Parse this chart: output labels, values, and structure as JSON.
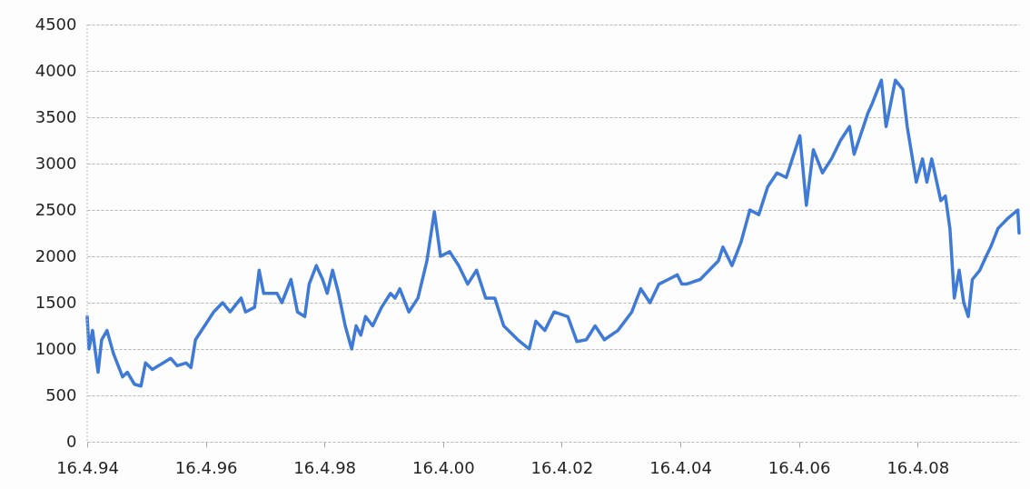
{
  "chart_data": {
    "type": "line",
    "grid": "y",
    "xlim": [
      "1994-04-16",
      "2010-01-01"
    ],
    "ylim": [
      0,
      4500
    ],
    "yticks": [
      0,
      500,
      1000,
      1500,
      2000,
      2500,
      3000,
      3500,
      4000,
      4500
    ],
    "xticks": [
      {
        "value": "1994-04-16",
        "label": "16.4.94"
      },
      {
        "value": "1996-04-16",
        "label": "16.4.96"
      },
      {
        "value": "1998-04-16",
        "label": "16.4.98"
      },
      {
        "value": "2000-04-16",
        "label": "16.4.00"
      },
      {
        "value": "2002-04-16",
        "label": "16.4.02"
      },
      {
        "value": "2004-04-16",
        "label": "16.4.04"
      },
      {
        "value": "2006-04-16",
        "label": "16.4.06"
      },
      {
        "value": "2008-04-16",
        "label": "16.4.08"
      }
    ],
    "x": [
      "1994-04-16",
      "1994-04-27",
      "1994-05-19",
      "1994-06-22",
      "1994-07-14",
      "1994-08-16",
      "1994-09-25",
      "1994-11-20",
      "1994-12-19",
      "1995-02-01",
      "1995-03-13",
      "1995-04-10",
      "1995-05-22",
      "1995-07-28",
      "1995-09-12",
      "1995-10-22",
      "1995-12-16",
      "1996-01-15",
      "1996-02-12",
      "1996-04-08",
      "1996-06-03",
      "1996-07-28",
      "1996-09-12",
      "1996-11-19",
      "1996-12-16",
      "1997-02-10",
      "1997-03-10",
      "1997-04-07",
      "1997-06-28",
      "1997-07-28",
      "1997-09-22",
      "1997-11-01",
      "1997-12-16",
      "1998-01-12",
      "1998-02-25",
      "1998-04-05",
      "1998-05-03",
      "1998-06-05",
      "1998-07-12",
      "1998-08-22",
      "1998-10-01",
      "1998-10-28",
      "1998-11-26",
      "1998-12-25",
      "1999-02-07",
      "1999-04-03",
      "1999-05-28",
      "1999-06-25",
      "1999-07-24",
      "1999-09-18",
      "1999-11-13",
      "2000-01-07",
      "2000-02-22",
      "2000-03-31",
      "2000-05-26",
      "2000-07-21",
      "2000-09-14",
      "2000-11-08",
      "2001-01-03",
      "2001-02-28",
      "2001-04-24",
      "2001-07-20",
      "2001-09-28",
      "2001-11-08",
      "2002-01-02",
      "2002-02-28",
      "2002-05-24",
      "2002-07-19",
      "2002-09-15",
      "2002-11-08",
      "2003-01-04",
      "2003-03-28",
      "2003-06-22",
      "2003-08-16",
      "2003-10-12",
      "2003-12-06",
      "2004-02-01",
      "2004-03-28",
      "2004-04-25",
      "2004-05-22",
      "2004-08-16",
      "2004-10-11",
      "2004-12-06",
      "2005-01-03",
      "2005-02-28",
      "2005-04-24",
      "2005-06-18",
      "2005-08-12",
      "2005-10-06",
      "2005-12-02",
      "2006-01-28",
      "2006-04-22",
      "2006-06-01",
      "2006-07-14",
      "2006-09-08",
      "2006-11-02",
      "2006-12-28",
      "2007-02-22",
      "2007-03-22",
      "2007-06-16",
      "2007-07-12",
      "2007-09-06",
      "2007-10-05",
      "2007-12-01",
      "2008-01-16",
      "2008-02-12",
      "2008-04-08",
      "2008-05-16",
      "2008-06-12",
      "2008-07-12",
      "2008-09-06",
      "2008-10-04",
      "2008-11-01",
      "2008-11-28",
      "2008-12-28",
      "2009-01-25",
      "2009-02-22",
      "2009-03-19",
      "2009-05-04",
      "2009-06-12",
      "2009-07-10",
      "2009-08-24",
      "2009-10-18",
      "2009-12-24",
      "2010-01-01"
    ],
    "series": [
      {
        "color": "#3f7bd6",
        "values": [
          1350,
          1000,
          1200,
          750,
          1100,
          1200,
          950,
          700,
          750,
          620,
          600,
          850,
          780,
          850,
          900,
          820,
          850,
          800,
          1100,
          1250,
          1400,
          1500,
          1400,
          1550,
          1400,
          1450,
          1850,
          1600,
          1600,
          1500,
          1750,
          1400,
          1350,
          1700,
          1900,
          1750,
          1600,
          1850,
          1600,
          1250,
          1000,
          1250,
          1150,
          1350,
          1250,
          1450,
          1600,
          1550,
          1650,
          1400,
          1550,
          1950,
          2480,
          2000,
          2050,
          1900,
          1700,
          1850,
          1550,
          1550,
          1250,
          1100,
          1000,
          1300,
          1200,
          1400,
          1350,
          1080,
          1100,
          1250,
          1100,
          1200,
          1400,
          1650,
          1500,
          1700,
          1750,
          1800,
          1700,
          1700,
          1750,
          1850,
          1950,
          2100,
          1900,
          2150,
          2500,
          2450,
          2750,
          2900,
          2850,
          3300,
          2550,
          3150,
          2900,
          3050,
          3250,
          3400,
          3100,
          3550,
          3650,
          3900,
          3400,
          3900,
          3800,
          3400,
          2800,
          3050,
          2800,
          3050,
          2600,
          2650,
          2300,
          1550,
          1850,
          1500,
          1350,
          1750,
          1850,
          2000,
          2100,
          2300,
          2400,
          2500,
          2250
        ]
      }
    ]
  }
}
